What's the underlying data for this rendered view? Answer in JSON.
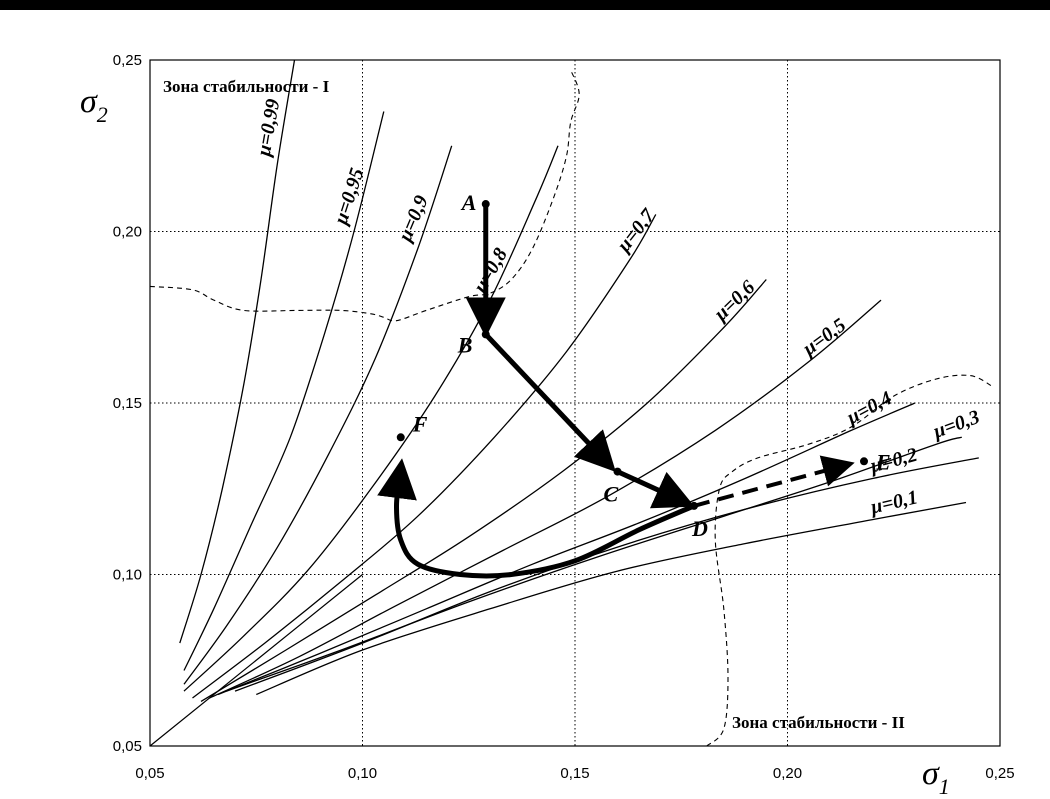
{
  "chart_data": {
    "type": "line",
    "xlabel": "σ",
    "xlabel_sub": "1",
    "ylabel": "σ",
    "ylabel_sub": "2",
    "xlim": [
      0.05,
      0.25
    ],
    "ylim": [
      0.05,
      0.25
    ],
    "xticks": [
      "0,05",
      "0,10",
      "0,15",
      "0,20",
      "0,25"
    ],
    "yticks": [
      "0,05",
      "0,10",
      "0,15",
      "0,20",
      "0,25"
    ],
    "grid": "dotted",
    "zones": [
      "Зона стабильности - I",
      "Зона стабильности - II"
    ],
    "series": [
      {
        "name": "μ=0,99",
        "points": [
          [
            0.057,
            0.08
          ],
          [
            0.062,
            0.1
          ],
          [
            0.067,
            0.125
          ],
          [
            0.072,
            0.155
          ],
          [
            0.076,
            0.185
          ],
          [
            0.08,
            0.22
          ],
          [
            0.084,
            0.25
          ]
        ]
      },
      {
        "name": "μ=0,95",
        "points": [
          [
            0.058,
            0.072
          ],
          [
            0.065,
            0.09
          ],
          [
            0.074,
            0.115
          ],
          [
            0.083,
            0.14
          ],
          [
            0.091,
            0.17
          ],
          [
            0.098,
            0.2
          ],
          [
            0.105,
            0.235
          ]
        ]
      },
      {
        "name": "μ=0,9",
        "points": [
          [
            0.058,
            0.068
          ],
          [
            0.068,
            0.085
          ],
          [
            0.08,
            0.108
          ],
          [
            0.092,
            0.135
          ],
          [
            0.103,
            0.163
          ],
          [
            0.113,
            0.195
          ],
          [
            0.121,
            0.225
          ]
        ]
      },
      {
        "name": "μ=0,8",
        "points": [
          [
            0.058,
            0.066
          ],
          [
            0.072,
            0.082
          ],
          [
            0.087,
            0.101
          ],
          [
            0.102,
            0.125
          ],
          [
            0.117,
            0.152
          ],
          [
            0.13,
            0.18
          ],
          [
            0.141,
            0.21
          ],
          [
            0.146,
            0.225
          ]
        ]
      },
      {
        "name": "μ=0,7",
        "points": [
          [
            0.06,
            0.064
          ],
          [
            0.077,
            0.08
          ],
          [
            0.095,
            0.098
          ],
          [
            0.113,
            0.117
          ],
          [
            0.131,
            0.14
          ],
          [
            0.148,
            0.165
          ],
          [
            0.163,
            0.192
          ],
          [
            0.169,
            0.205
          ]
        ]
      },
      {
        "name": "μ=0,6",
        "points": [
          [
            0.062,
            0.063
          ],
          [
            0.082,
            0.078
          ],
          [
            0.103,
            0.094
          ],
          [
            0.125,
            0.111
          ],
          [
            0.147,
            0.13
          ],
          [
            0.167,
            0.15
          ],
          [
            0.185,
            0.172
          ],
          [
            0.195,
            0.186
          ]
        ]
      },
      {
        "name": "μ=0,5",
        "points": [
          [
            0.064,
            0.064
          ],
          [
            0.085,
            0.076
          ],
          [
            0.108,
            0.091
          ],
          [
            0.133,
            0.107
          ],
          [
            0.158,
            0.123
          ],
          [
            0.183,
            0.142
          ],
          [
            0.205,
            0.162
          ],
          [
            0.222,
            0.18
          ]
        ]
      },
      {
        "name": "μ=0,4",
        "points": [
          [
            0.066,
            0.065
          ],
          [
            0.09,
            0.077
          ],
          [
            0.115,
            0.09
          ],
          [
            0.14,
            0.103
          ],
          [
            0.165,
            0.115
          ],
          [
            0.19,
            0.128
          ],
          [
            0.215,
            0.142
          ],
          [
            0.23,
            0.15
          ]
        ]
      },
      {
        "name": "μ=0,3",
        "points": [
          [
            0.068,
            0.066
          ],
          [
            0.095,
            0.078
          ],
          [
            0.125,
            0.092
          ],
          [
            0.155,
            0.105
          ],
          [
            0.185,
            0.117
          ],
          [
            0.21,
            0.127
          ],
          [
            0.235,
            0.138
          ],
          [
            0.241,
            0.14
          ]
        ]
      },
      {
        "name": "μ=0,2",
        "points": [
          [
            0.07,
            0.066
          ],
          [
            0.1,
            0.08
          ],
          [
            0.13,
            0.095
          ],
          [
            0.16,
            0.108
          ],
          [
            0.19,
            0.119
          ],
          [
            0.22,
            0.128
          ],
          [
            0.245,
            0.134
          ]
        ]
      },
      {
        "name": "μ=0,1",
        "points": [
          [
            0.075,
            0.065
          ],
          [
            0.1,
            0.078
          ],
          [
            0.13,
            0.09
          ],
          [
            0.16,
            0.101
          ],
          [
            0.19,
            0.109
          ],
          [
            0.22,
            0.116
          ],
          [
            0.242,
            0.121
          ]
        ]
      }
    ],
    "diagonal": [
      [
        0.05,
        0.05
      ],
      [
        0.1,
        0.1
      ]
    ],
    "boundary_I": [
      [
        0.05,
        0.184
      ],
      [
        0.06,
        0.183
      ],
      [
        0.065,
        0.18
      ],
      [
        0.072,
        0.177
      ],
      [
        0.085,
        0.177
      ],
      [
        0.095,
        0.177
      ],
      [
        0.102,
        0.176
      ],
      [
        0.105,
        0.175
      ],
      [
        0.108,
        0.174
      ],
      [
        0.115,
        0.177
      ],
      [
        0.125,
        0.181
      ],
      [
        0.13,
        0.182
      ],
      [
        0.135,
        0.186
      ],
      [
        0.14,
        0.195
      ],
      [
        0.145,
        0.21
      ],
      [
        0.148,
        0.222
      ],
      [
        0.149,
        0.232
      ],
      [
        0.151,
        0.24
      ],
      [
        0.149,
        0.247
      ]
    ],
    "boundary_II": [
      [
        0.181,
        0.05
      ],
      [
        0.185,
        0.055
      ],
      [
        0.186,
        0.07
      ],
      [
        0.185,
        0.09
      ],
      [
        0.183,
        0.11
      ],
      [
        0.184,
        0.125
      ],
      [
        0.187,
        0.13
      ],
      [
        0.193,
        0.134
      ],
      [
        0.205,
        0.138
      ],
      [
        0.215,
        0.143
      ],
      [
        0.225,
        0.152
      ],
      [
        0.235,
        0.157
      ],
      [
        0.243,
        0.158
      ],
      [
        0.248,
        0.155
      ]
    ],
    "path_points": [
      {
        "label": "A",
        "x": 0.129,
        "y": 0.208
      },
      {
        "label": "B",
        "x": 0.129,
        "y": 0.17
      },
      {
        "label": "C",
        "x": 0.16,
        "y": 0.13
      },
      {
        "label": "D",
        "x": 0.178,
        "y": 0.12
      },
      {
        "label": "E",
        "x": 0.218,
        "y": 0.133
      },
      {
        "label": "F",
        "x": 0.109,
        "y": 0.14
      }
    ],
    "path_D_to_F": [
      [
        0.178,
        0.12
      ],
      [
        0.165,
        0.113
      ],
      [
        0.15,
        0.104
      ],
      [
        0.135,
        0.1
      ],
      [
        0.123,
        0.1
      ],
      [
        0.113,
        0.103
      ],
      [
        0.109,
        0.11
      ],
      [
        0.108,
        0.12
      ],
      [
        0.109,
        0.131
      ]
    ]
  }
}
